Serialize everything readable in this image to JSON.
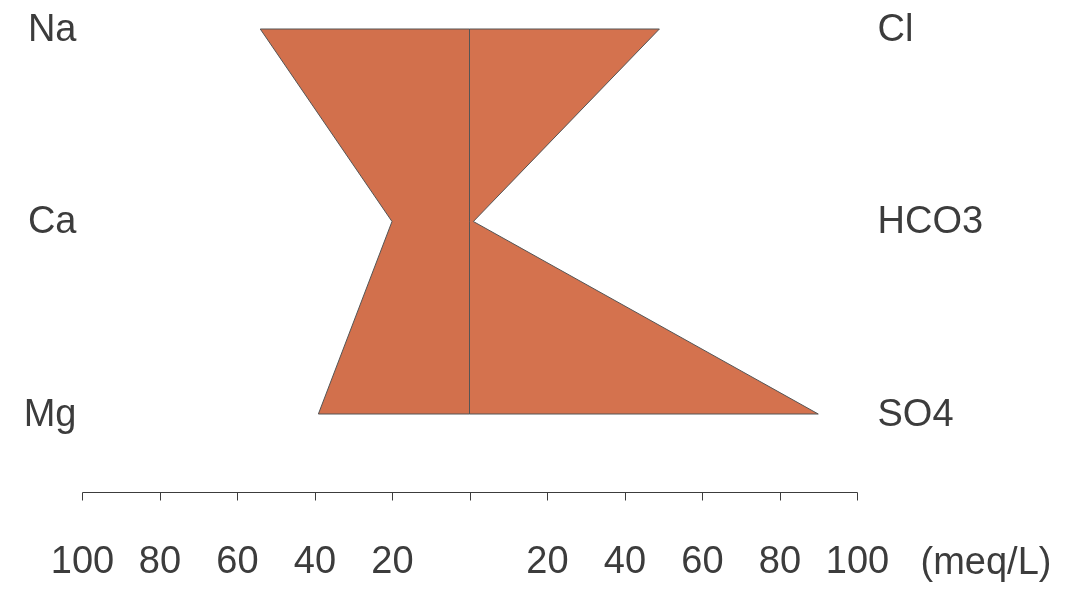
{
  "chart_data": {
    "type": "area",
    "orientation": "horizontal",
    "categories": [
      "Na",
      "Ca",
      "Mg"
    ],
    "y2_categories": [
      "Cl",
      "HCO3",
      "SO4"
    ],
    "xlabel": "(meq/L)",
    "xlim": [
      -100,
      100
    ],
    "xticks": [
      {
        "value": -100,
        "label": "100"
      },
      {
        "value": -80,
        "label": "80"
      },
      {
        "value": -60,
        "label": "60"
      },
      {
        "value": -40,
        "label": "40"
      },
      {
        "value": -20,
        "label": "20"
      },
      {
        "value": 0,
        "label": null
      },
      20,
      40,
      60,
      80,
      100
    ],
    "series": [
      {
        "color": "#d2704c",
        "values": [
          -54,
          -20,
          -39
        ]
      },
      {
        "color": "#d4724e",
        "values": [
          49,
          1,
          90
        ]
      }
    ]
  }
}
